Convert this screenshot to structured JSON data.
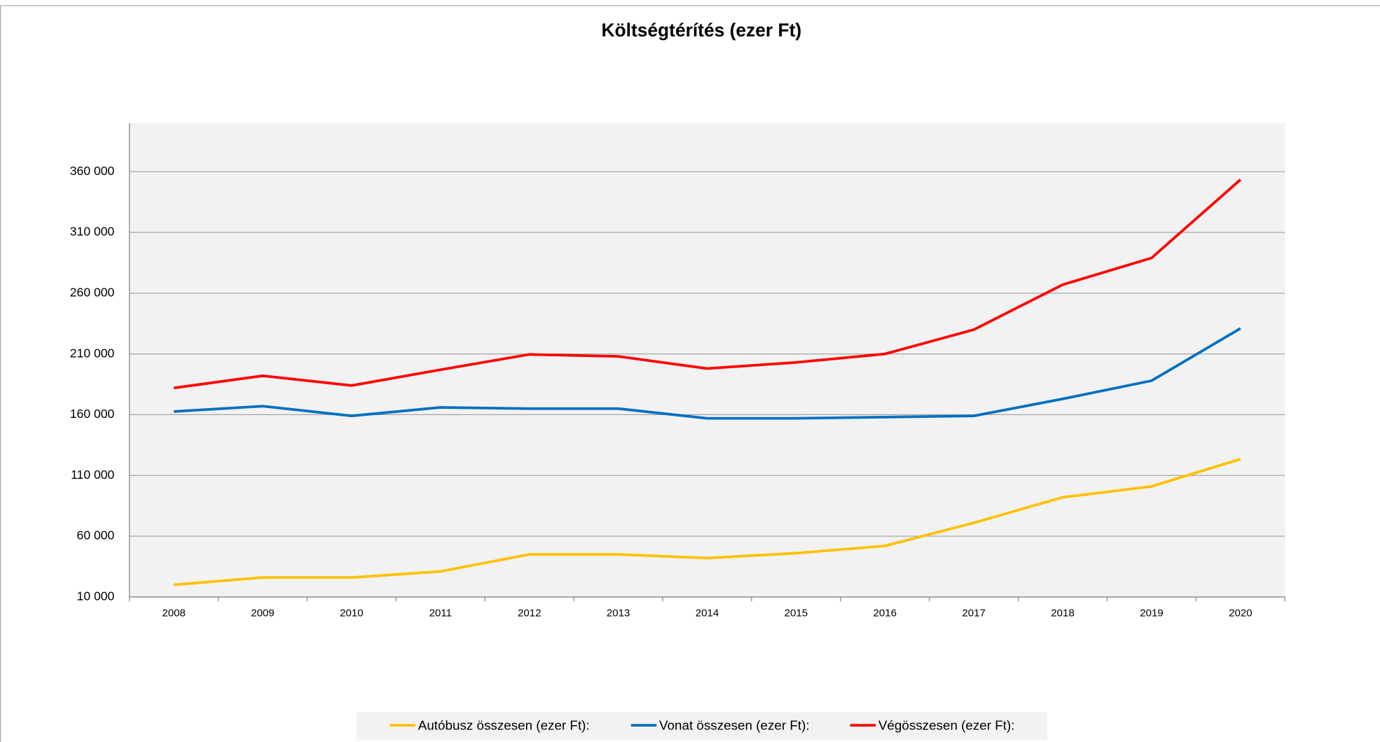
{
  "chart_data": {
    "type": "line",
    "title": "Költségtérítés (ezer Ft)",
    "categories": [
      "2008",
      "2009",
      "2010",
      "2011",
      "2012",
      "2013",
      "2014",
      "2015",
      "2016",
      "2017",
      "2018",
      "2019",
      "2020"
    ],
    "series": [
      {
        "name": "Autóbusz összesen (ezer Ft):",
        "color": "#ffc000",
        "values": [
          20000,
          26000,
          26000,
          31000,
          45000,
          45000,
          42000,
          46000,
          52000,
          71000,
          92000,
          101000,
          123500
        ]
      },
      {
        "name": "Vonat összesen (ezer Ft):",
        "color": "#0070c0",
        "values": [
          162600,
          167000,
          159000,
          166000,
          165000,
          165000,
          157000,
          157000,
          158000,
          159000,
          173000,
          188000,
          231000
        ]
      },
      {
        "name": "Végösszesen (ezer Ft):",
        "color": "#ff0000",
        "values": [
          182000,
          192000,
          184000,
          197000,
          209600,
          208000,
          198000,
          203000,
          210000,
          230000,
          267000,
          289000,
          353500
        ]
      }
    ],
    "ylim": [
      10000,
      400000
    ],
    "yticks": [
      {
        "value": 10000,
        "label": "10 000"
      },
      {
        "value": 60000,
        "label": "60 000"
      },
      {
        "value": 110000,
        "label": "110 000"
      },
      {
        "value": 160000,
        "label": "160 000"
      },
      {
        "value": 210000,
        "label": "210 000"
      },
      {
        "value": 260000,
        "label": "260 000"
      },
      {
        "value": 310000,
        "label": "310 000"
      },
      {
        "value": 360000,
        "label": "360 000"
      }
    ],
    "grid": true,
    "legend": "bottom"
  }
}
